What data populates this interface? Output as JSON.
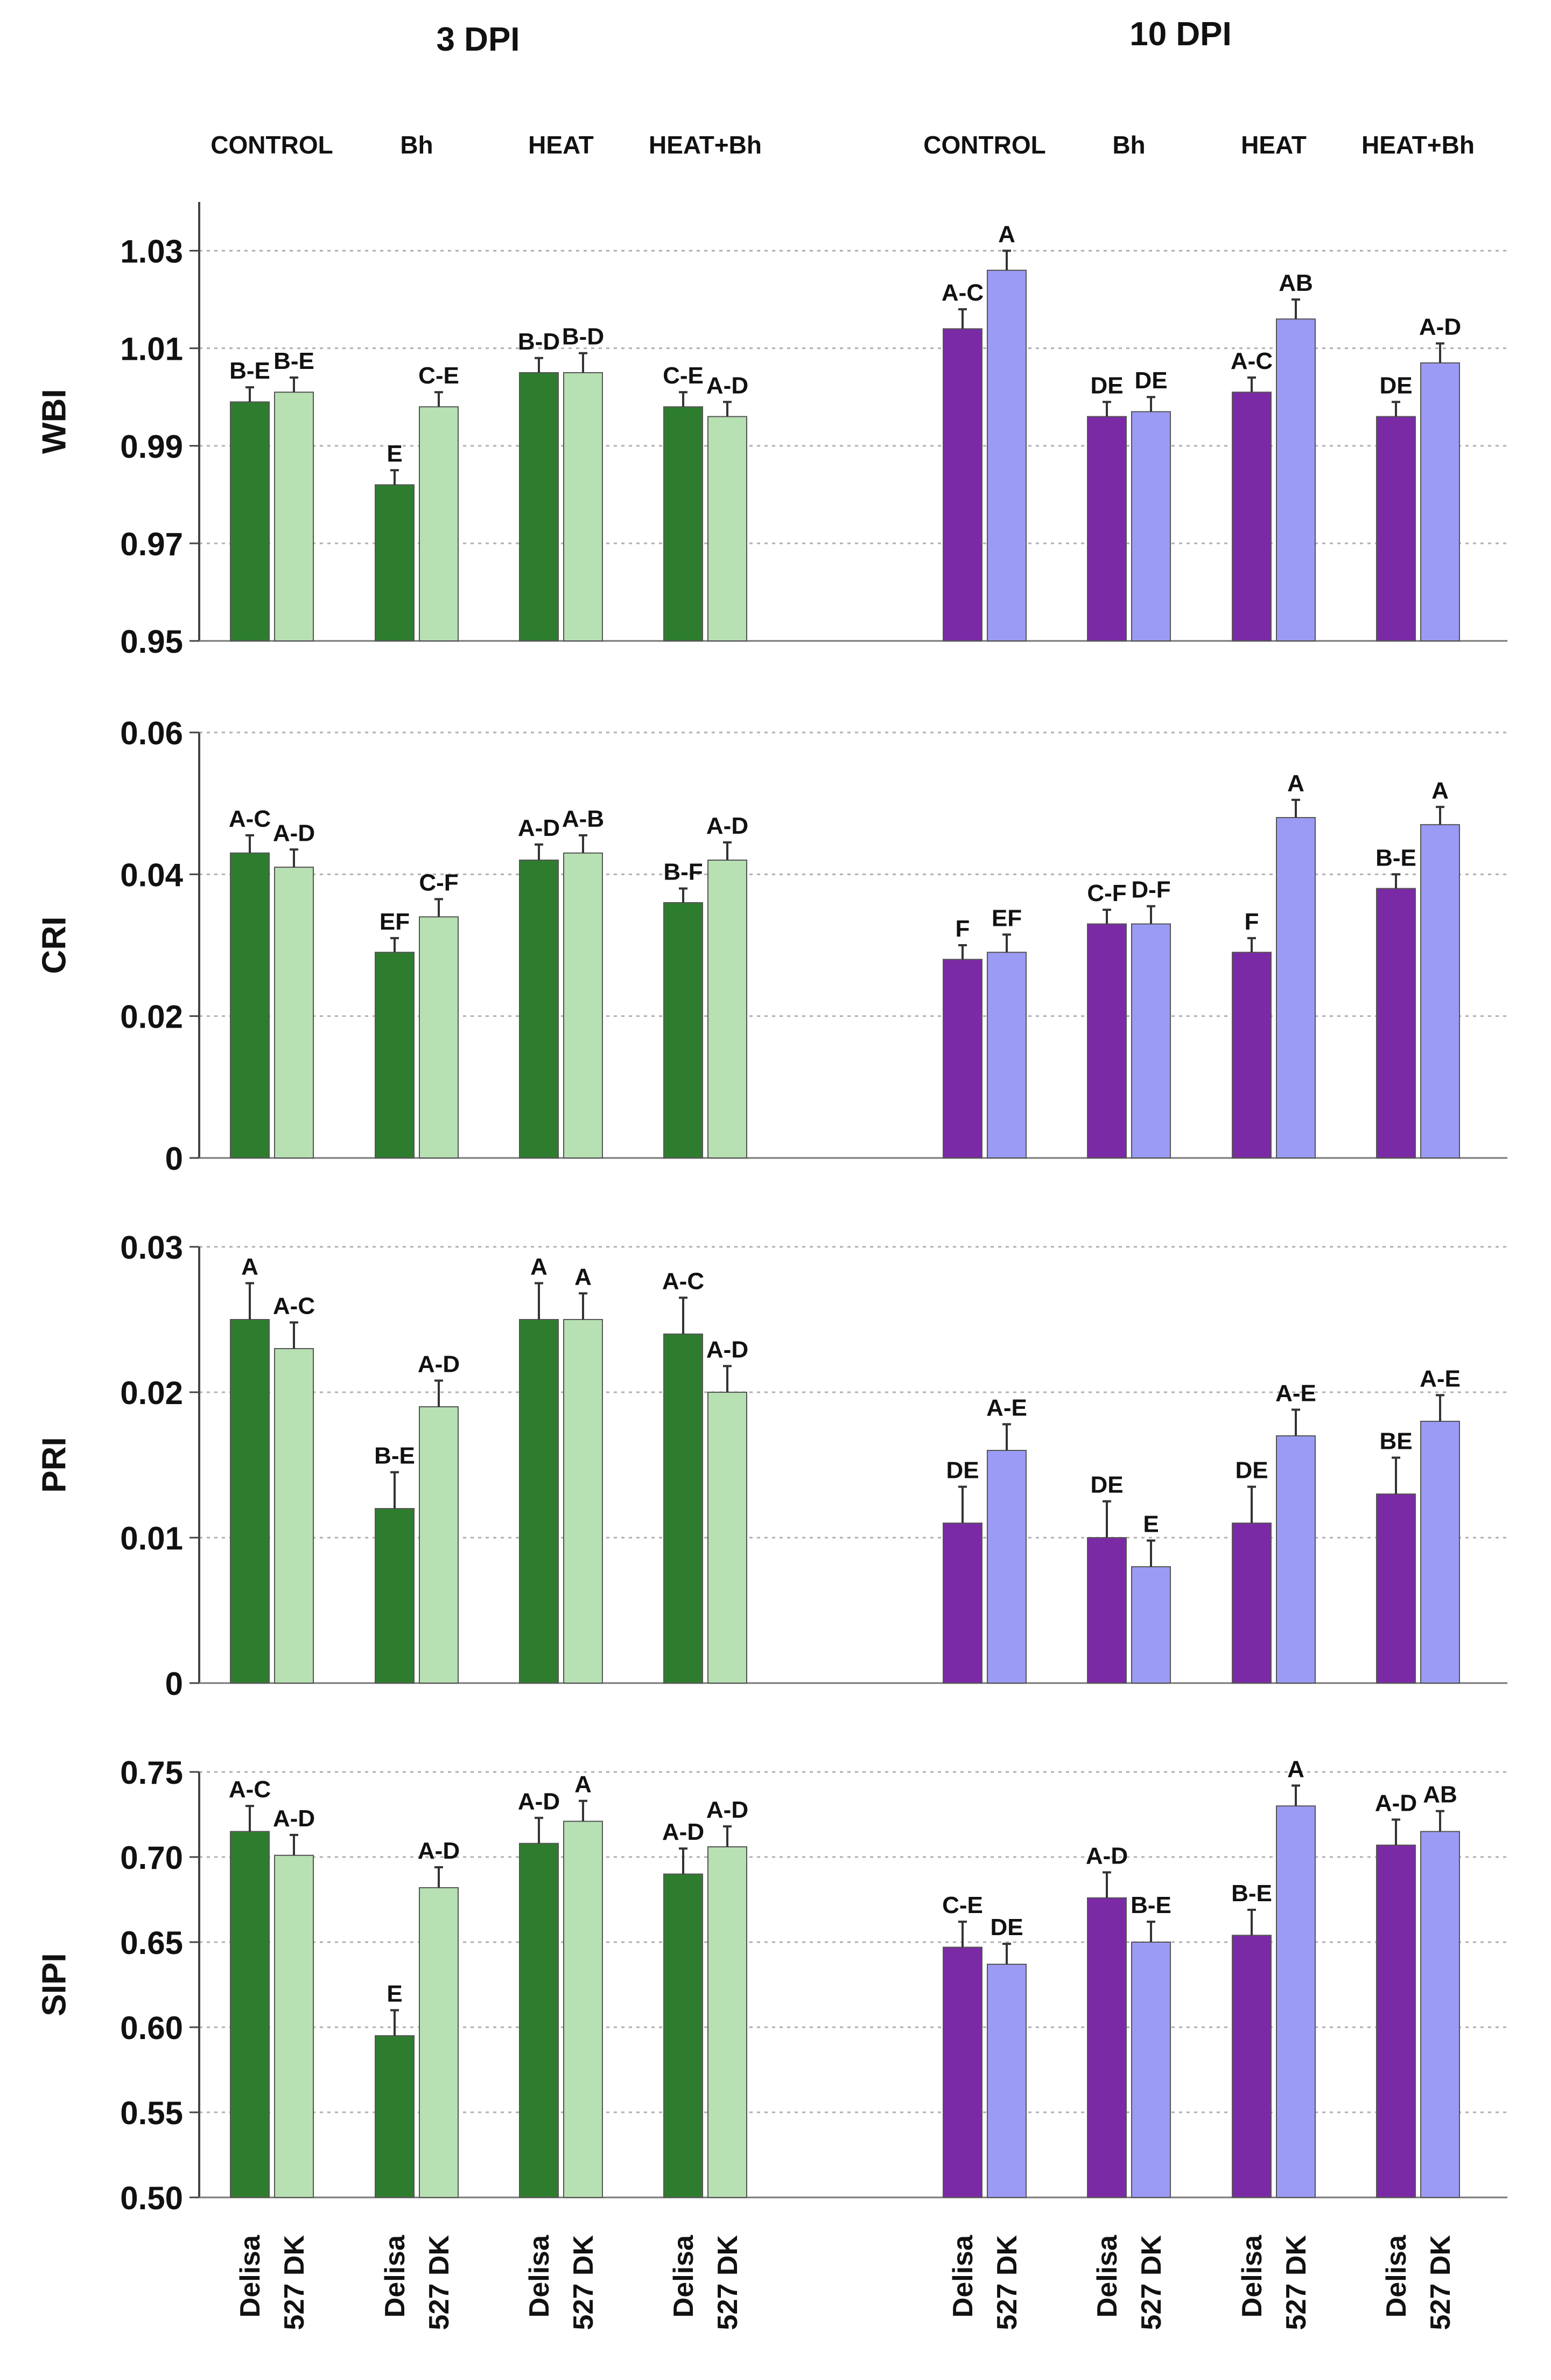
{
  "figure": {
    "dpi_headers": [
      "3 DPI",
      "10 DPI"
    ],
    "treatments": [
      "CONTROL",
      "Bh",
      "HEAT",
      "HEAT+Bh"
    ],
    "cultivars": [
      "Delisa",
      "527 DK"
    ]
  },
  "colors": {
    "dpi3_delisa": "#2e7d2e",
    "dpi3_527dk": "#b7e0b3",
    "dpi10_delisa": "#7b2aa5",
    "dpi10_527dk": "#9b9bf5",
    "error_bar": "#333333",
    "grid": "#b0b0b0"
  },
  "chart_data": [
    {
      "type": "bar",
      "ylabel": "WBI",
      "ylim": [
        0.95,
        1.04
      ],
      "yticks": [
        "0.95",
        "0.97",
        "0.99",
        "1.01",
        "1.03"
      ],
      "grid": "dotted horizontal",
      "categories": [
        "CONTROL",
        "Bh",
        "HEAT",
        "HEAT+Bh"
      ],
      "groups": {
        "3 DPI": [
          {
            "name": "Delisa",
            "values": [
              0.999,
              0.982,
              1.005,
              0.998
            ],
            "errors": [
              0.003,
              0.003,
              0.003,
              0.003
            ],
            "letters": [
              "B-E",
              "E",
              "B-D",
              "C-E"
            ]
          },
          {
            "name": "527 DK",
            "values": [
              1.001,
              0.998,
              1.005,
              0.996
            ],
            "errors": [
              0.003,
              0.003,
              0.004,
              0.003
            ],
            "letters": [
              "B-E",
              "C-E",
              "B-D",
              "A-D"
            ]
          }
        ],
        "10 DPI": [
          {
            "name": "Delisa",
            "values": [
              1.014,
              0.996,
              1.001,
              0.996
            ],
            "errors": [
              0.004,
              0.003,
              0.003,
              0.003
            ],
            "letters": [
              "A-C",
              "DE",
              "A-C",
              "DE"
            ]
          },
          {
            "name": "527 DK",
            "values": [
              1.026,
              0.997,
              1.016,
              1.007
            ],
            "errors": [
              0.004,
              0.003,
              0.004,
              0.004
            ],
            "letters": [
              "A",
              "DE",
              "AB",
              "A-D"
            ]
          }
        ]
      }
    },
    {
      "type": "bar",
      "ylabel": "CRI",
      "ylim": [
        0,
        0.06
      ],
      "yticks": [
        "0",
        "0.02",
        "0.04",
        "0.06"
      ],
      "grid": "dotted horizontal",
      "categories": [
        "CONTROL",
        "Bh",
        "HEAT",
        "HEAT+Bh"
      ],
      "groups": {
        "3 DPI": [
          {
            "name": "Delisa",
            "values": [
              0.043,
              0.029,
              0.042,
              0.036
            ],
            "errors": [
              0.0025,
              0.002,
              0.0022,
              0.002
            ],
            "letters": [
              "A-C",
              "EF",
              "A-D",
              "B-F"
            ]
          },
          {
            "name": "527 DK",
            "values": [
              0.041,
              0.034,
              0.043,
              0.042
            ],
            "errors": [
              0.0025,
              0.0025,
              0.0025,
              0.0025
            ],
            "letters": [
              "A-D",
              "C-F",
              "A-B",
              "A-D"
            ]
          }
        ],
        "10 DPI": [
          {
            "name": "Delisa",
            "values": [
              0.028,
              0.033,
              0.029,
              0.038
            ],
            "errors": [
              0.002,
              0.002,
              0.002,
              0.002
            ],
            "letters": [
              "F",
              "C-F",
              "F",
              "B-E"
            ]
          },
          {
            "name": "527 DK",
            "values": [
              0.029,
              0.033,
              0.048,
              0.047
            ],
            "errors": [
              0.0025,
              0.0025,
              0.0025,
              0.0025
            ],
            "letters": [
              "EF",
              "D-F",
              "A",
              "A"
            ]
          }
        ]
      }
    },
    {
      "type": "bar",
      "ylabel": "PRI",
      "ylim": [
        0,
        0.03
      ],
      "yticks": [
        "0",
        "0.01",
        "0.02",
        "0.03"
      ],
      "grid": "dotted horizontal",
      "categories": [
        "CONTROL",
        "Bh",
        "HEAT",
        "HEAT+Bh"
      ],
      "groups": {
        "3 DPI": [
          {
            "name": "Delisa",
            "values": [
              0.025,
              0.012,
              0.025,
              0.024
            ],
            "errors": [
              0.0025,
              0.0025,
              0.0025,
              0.0025
            ],
            "letters": [
              "A",
              "B-E",
              "A",
              "A-C"
            ]
          },
          {
            "name": "527 DK",
            "values": [
              0.023,
              0.019,
              0.025,
              0.02
            ],
            "errors": [
              0.0018,
              0.0018,
              0.0018,
              0.0018
            ],
            "letters": [
              "A-C",
              "A-D",
              "A",
              "A-D"
            ]
          }
        ],
        "10 DPI": [
          {
            "name": "Delisa",
            "values": [
              0.011,
              0.01,
              0.011,
              0.013
            ],
            "errors": [
              0.0025,
              0.0025,
              0.0025,
              0.0025
            ],
            "letters": [
              "DE",
              "DE",
              "DE",
              "BE"
            ]
          },
          {
            "name": "527 DK",
            "values": [
              0.016,
              0.008,
              0.017,
              0.018
            ],
            "errors": [
              0.0018,
              0.0018,
              0.0018,
              0.0018
            ],
            "letters": [
              "A-E",
              "E",
              "A-E",
              "A-E"
            ]
          }
        ]
      }
    },
    {
      "type": "bar",
      "ylabel": "SIPI",
      "ylim": [
        0.5,
        0.75
      ],
      "yticks": [
        "0.50",
        "0.55",
        "0.60",
        "0.65",
        "0.70",
        "0.75"
      ],
      "grid": "dotted horizontal",
      "categories": [
        "CONTROL",
        "Bh",
        "HEAT",
        "HEAT+Bh"
      ],
      "xtick_labels": [
        "Delisa",
        "527 DK"
      ],
      "groups": {
        "3 DPI": [
          {
            "name": "Delisa",
            "values": [
              0.715,
              0.595,
              0.708,
              0.69
            ],
            "errors": [
              0.015,
              0.015,
              0.015,
              0.015
            ],
            "letters": [
              "A-C",
              "E",
              "A-D",
              "A-D"
            ]
          },
          {
            "name": "527 DK",
            "values": [
              0.701,
              0.682,
              0.721,
              0.706
            ],
            "errors": [
              0.012,
              0.012,
              0.012,
              0.012
            ],
            "letters": [
              "A-D",
              "A-D",
              "A",
              "A-D"
            ]
          }
        ],
        "10 DPI": [
          {
            "name": "Delisa",
            "values": [
              0.647,
              0.676,
              0.654,
              0.707
            ],
            "errors": [
              0.015,
              0.015,
              0.015,
              0.015
            ],
            "letters": [
              "C-E",
              "A-D",
              "B-E",
              "A-D"
            ]
          },
          {
            "name": "527 DK",
            "values": [
              0.637,
              0.65,
              0.73,
              0.715
            ],
            "errors": [
              0.012,
              0.012,
              0.012,
              0.012
            ],
            "letters": [
              "DE",
              "B-E",
              "A",
              "AB"
            ]
          }
        ]
      }
    }
  ]
}
